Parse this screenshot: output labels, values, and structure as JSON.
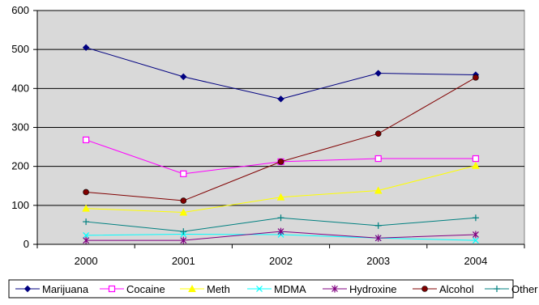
{
  "chart_data": {
    "type": "line",
    "title": "",
    "xlabel": "",
    "ylabel": "",
    "categories": [
      "2000",
      "2001",
      "2002",
      "2003",
      "2004"
    ],
    "ylim": [
      0,
      600
    ],
    "yticks": [
      0,
      100,
      200,
      300,
      400,
      500,
      600
    ],
    "grid": true,
    "plot_background": "#D9D9D9",
    "legend_position": "bottom",
    "series": [
      {
        "name": "Marijuana",
        "color": "#000080",
        "marker": "diamond",
        "values": [
          505,
          430,
          373,
          439,
          435
        ]
      },
      {
        "name": "Cocaine",
        "color": "#FF00FF",
        "marker": "square",
        "values": [
          268,
          181,
          212,
          220,
          220
        ]
      },
      {
        "name": "Meth",
        "color": "#FFFF00",
        "marker": "triangle",
        "values": [
          92,
          82,
          121,
          138,
          202
        ]
      },
      {
        "name": "MDMA",
        "color": "#00FFFF",
        "marker": "x",
        "values": [
          23,
          26,
          25,
          16,
          10
        ]
      },
      {
        "name": "Hydroxine",
        "color": "#800080",
        "marker": "star",
        "values": [
          10,
          10,
          33,
          16,
          25
        ]
      },
      {
        "name": "Alcohol",
        "color": "#800000",
        "marker": "circle",
        "values": [
          134,
          112,
          212,
          284,
          428
        ]
      },
      {
        "name": "Other",
        "color": "#008080",
        "marker": "plus",
        "values": [
          58,
          33,
          68,
          48,
          68
        ]
      }
    ]
  }
}
